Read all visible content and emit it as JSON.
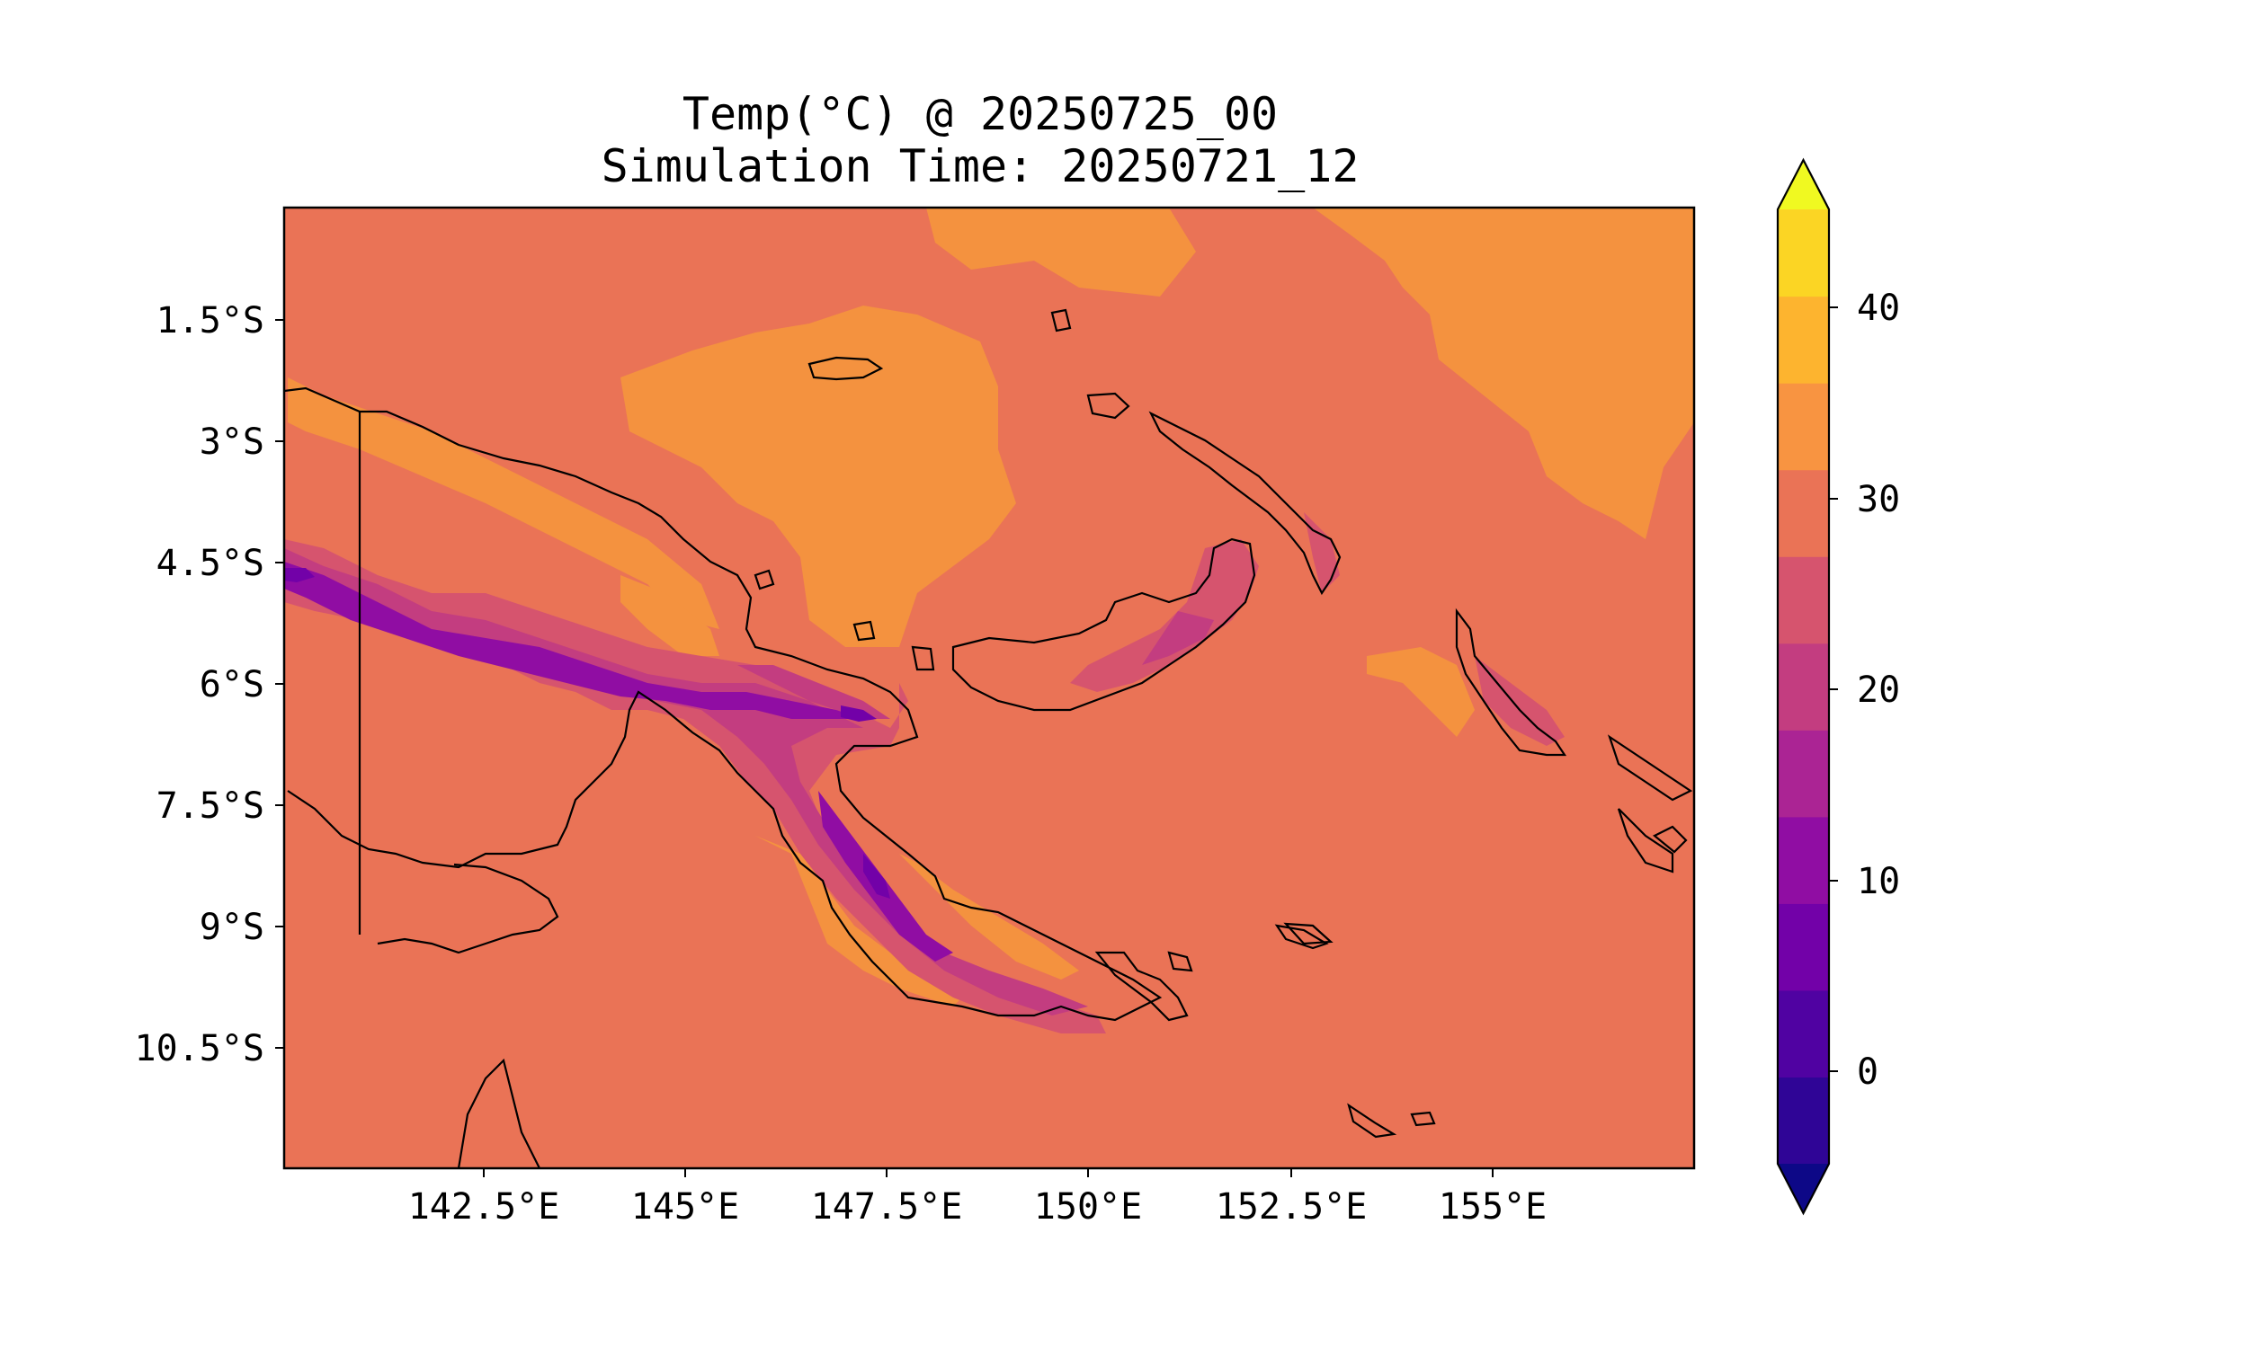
{
  "title": {
    "line1": "Temp(°C) @ 20250725_00",
    "line2": "Simulation Time: 20250721_12"
  },
  "map": {
    "variable": "Temp(°C)",
    "valid_time": "20250725_00",
    "simulation_time": "20250721_12",
    "background_color": "#ea7356",
    "x_ticks": [
      "142.5°E",
      "145°E",
      "147.5°E",
      "150°E",
      "152.5°E",
      "155°E"
    ],
    "y_ticks": [
      "1.5°S",
      "3°S",
      "4.5°S",
      "6°S",
      "7.5°S",
      "9°S",
      "10.5°S"
    ]
  },
  "colorbar": {
    "tick_labels": [
      "0",
      "10",
      "20",
      "30",
      "40"
    ],
    "extend": "both",
    "colors": [
      "#0d0887",
      "#2f0596",
      "#5002a2",
      "#7201a8",
      "#900da3",
      "#ab2494",
      "#c33d80",
      "#d6546e",
      "#ea7356",
      "#f89441",
      "#fdb42f",
      "#fbd524",
      "#f0f921"
    ]
  }
}
